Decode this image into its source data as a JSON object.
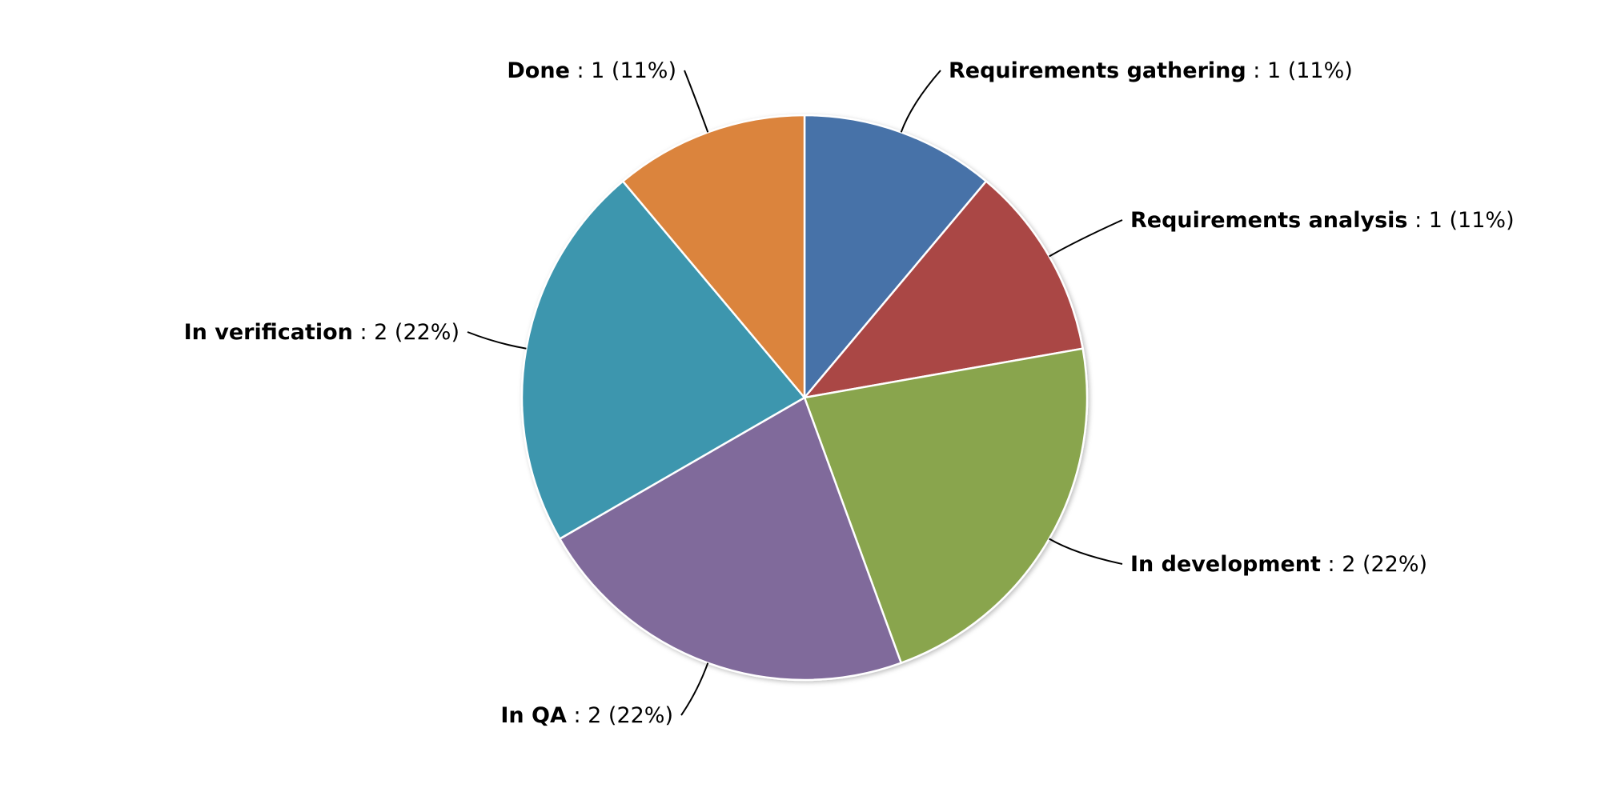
{
  "chart_data": {
    "type": "pie",
    "title": "",
    "start_angle_deg": 0,
    "direction": "clockwise",
    "value_separator": " : ",
    "slices": [
      {
        "label": "Requirements gathering",
        "value": 1,
        "percent": "11%",
        "color": "#4672a8",
        "label_side": "right"
      },
      {
        "label": "Requirements analysis",
        "value": 1,
        "percent": "11%",
        "color": "#aa4644",
        "label_side": "right"
      },
      {
        "label": "In development",
        "value": 2,
        "percent": "22%",
        "color": "#89a54e",
        "label_side": "right"
      },
      {
        "label": "In QA",
        "value": 2,
        "percent": "22%",
        "color": "#806a9b",
        "label_side": "left"
      },
      {
        "label": "In verification",
        "value": 2,
        "percent": "22%",
        "color": "#3d96ae",
        "label_side": "left"
      },
      {
        "label": "Done",
        "value": 1,
        "percent": "11%",
        "color": "#db843d",
        "label_side": "left"
      }
    ],
    "slice_border_color": "#ffffff",
    "connector_color": "#000000",
    "legend": "none"
  }
}
